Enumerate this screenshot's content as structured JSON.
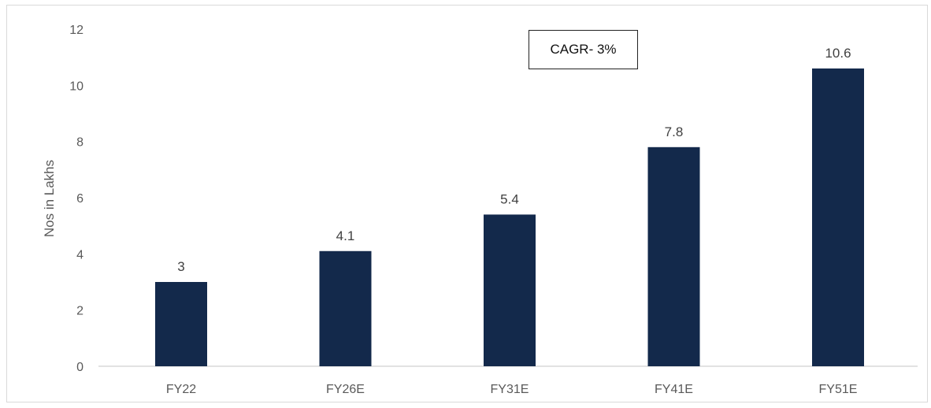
{
  "chart_data": {
    "type": "bar",
    "categories": [
      "FY22",
      "FY26E",
      "FY31E",
      "FY41E",
      "FY51E"
    ],
    "values": [
      3,
      4.1,
      5.4,
      7.8,
      10.6
    ],
    "data_labels": [
      "3",
      "4.1",
      "5.4",
      "7.8",
      "10.6"
    ],
    "title": "",
    "xlabel": "",
    "ylabel": "Nos in Lakhs",
    "ylim": [
      0,
      12
    ],
    "yticks": [
      0,
      2,
      4,
      6,
      8,
      10,
      12
    ],
    "grid": false,
    "bar_color": "#13294b",
    "annotation": "CAGR- 3%"
  }
}
